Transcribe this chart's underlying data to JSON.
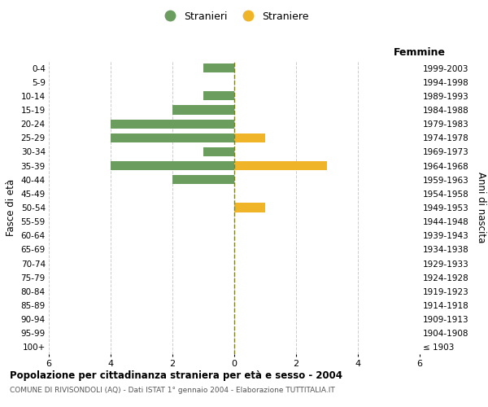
{
  "age_groups": [
    "100+",
    "95-99",
    "90-94",
    "85-89",
    "80-84",
    "75-79",
    "70-74",
    "65-69",
    "60-64",
    "55-59",
    "50-54",
    "45-49",
    "40-44",
    "35-39",
    "30-34",
    "25-29",
    "20-24",
    "15-19",
    "10-14",
    "5-9",
    "0-4"
  ],
  "birth_years": [
    "≤ 1903",
    "1904-1908",
    "1909-1913",
    "1914-1918",
    "1919-1923",
    "1924-1928",
    "1929-1933",
    "1934-1938",
    "1939-1943",
    "1944-1948",
    "1949-1953",
    "1954-1958",
    "1959-1963",
    "1964-1968",
    "1969-1973",
    "1974-1978",
    "1979-1983",
    "1984-1988",
    "1989-1993",
    "1994-1998",
    "1999-2003"
  ],
  "males": [
    0,
    0,
    0,
    0,
    0,
    0,
    0,
    0,
    0,
    0,
    0,
    0,
    2,
    4,
    1,
    4,
    4,
    2,
    1,
    0,
    1
  ],
  "females": [
    0,
    0,
    0,
    0,
    0,
    0,
    0,
    0,
    0,
    0,
    1,
    0,
    0,
    3,
    0,
    1,
    0,
    0,
    0,
    0,
    0
  ],
  "male_color": "#6b9e5e",
  "female_color": "#f0b429",
  "xlim": 6,
  "xlabel_right": "Femmine",
  "ylabel_left": "Fasce di età",
  "ylabel_right": "Anni di nascita",
  "legend_labels": [
    "Stranieri",
    "Straniere"
  ],
  "title": "Popolazione per cittadinanza straniera per età e sesso - 2004",
  "subtitle": "COMUNE DI RIVISONDOLI (AQ) - Dati ISTAT 1° gennaio 2004 - Elaborazione TUTTITALIA.IT",
  "background_color": "#ffffff",
  "grid_color": "#cccccc",
  "center_line_color": "#808020"
}
